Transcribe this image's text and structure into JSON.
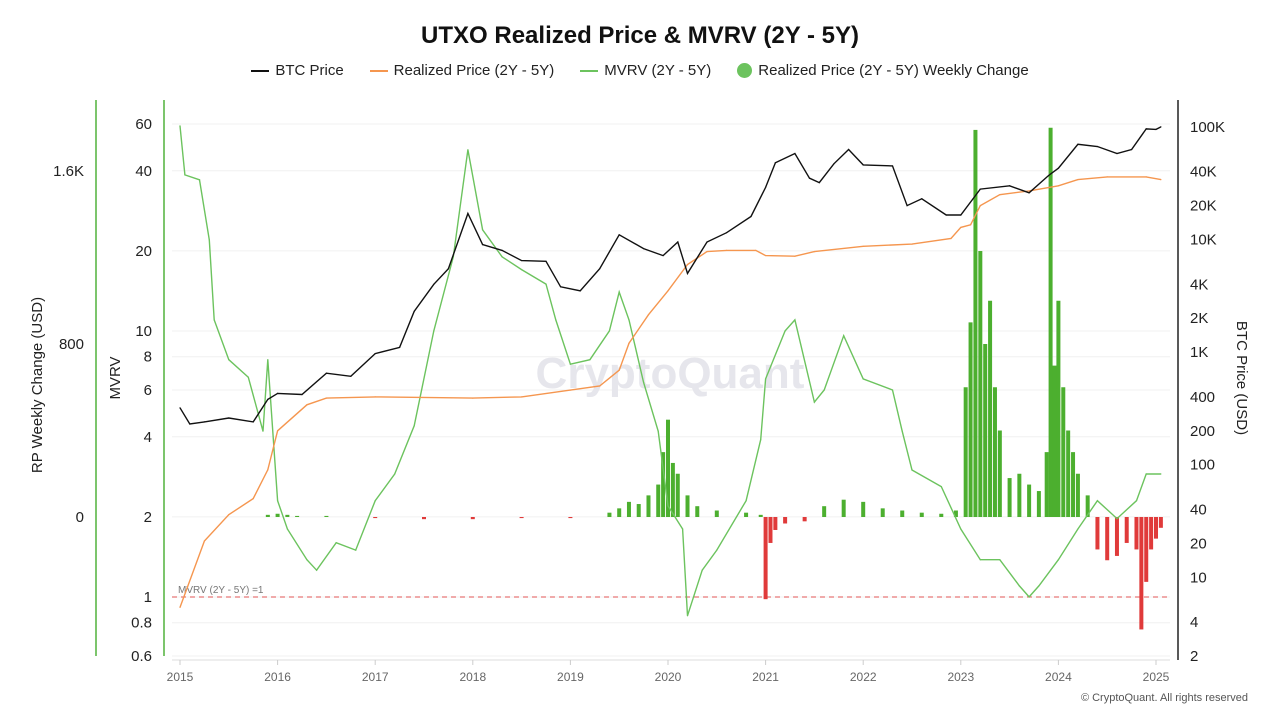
{
  "chart_data": {
    "type": "line",
    "title": "UTXO Realized Price & MVRV (2Y - 5Y)",
    "legend": [
      {
        "label": "BTC Price",
        "color": "#111111"
      },
      {
        "label": "Realized Price (2Y - 5Y)",
        "color": "#f5964f"
      },
      {
        "label": "MVRV (2Y - 5Y)",
        "color": "#6cc35e"
      },
      {
        "label": "Realized Price (2Y - 5Y) Weekly Change",
        "color": "#6cc35e"
      }
    ],
    "legend_placement": "top",
    "axes": {
      "x": {
        "ticks": [
          "2015",
          "2016",
          "2017",
          "2018",
          "2019",
          "2020",
          "2021",
          "2022",
          "2023",
          "2024",
          "2025"
        ],
        "range": [
          2015,
          2025.1
        ]
      },
      "rp_change": {
        "label": "RP Weekly Change (USD)",
        "ticks": [
          "0",
          "800",
          "1.6K"
        ],
        "tick_values": [
          0,
          800,
          1600
        ],
        "scale": "linear",
        "position": "left-outer"
      },
      "mvrv": {
        "label": "MVRV",
        "ticks": [
          "0.6",
          "0.8",
          "1",
          "2",
          "4",
          "6",
          "8",
          "10",
          "20",
          "40",
          "60"
        ],
        "tick_values": [
          0.6,
          0.8,
          1,
          2,
          4,
          6,
          8,
          10,
          20,
          40,
          60
        ],
        "scale": "log",
        "range": [
          0.6,
          60
        ],
        "position": "left-inner"
      },
      "btc": {
        "label": "BTC Price (USD)",
        "ticks": [
          "2",
          "4",
          "10",
          "20",
          "40",
          "100",
          "200",
          "400",
          "1K",
          "2K",
          "4K",
          "10K",
          "20K",
          "40K",
          "100K"
        ],
        "tick_values": [
          2,
          4,
          10,
          20,
          40,
          100,
          200,
          400,
          1000,
          2000,
          4000,
          10000,
          20000,
          40000,
          100000
        ],
        "scale": "log",
        "range": [
          2,
          100000
        ],
        "position": "right"
      }
    },
    "reference_line": {
      "label": "MVRV (2Y - 5Y) =1",
      "value": 1,
      "color": "#e05555"
    },
    "grid": true,
    "watermark": "CryptoQuant",
    "series": [
      {
        "name": "BTC Price",
        "axis": "btc",
        "color": "#111111",
        "x": [
          2015.0,
          2015.1,
          2015.25,
          2015.5,
          2015.75,
          2015.9,
          2016.0,
          2016.25,
          2016.5,
          2016.75,
          2017.0,
          2017.25,
          2017.4,
          2017.6,
          2017.75,
          2017.95,
          2018.1,
          2018.3,
          2018.5,
          2018.75,
          2018.9,
          2019.1,
          2019.3,
          2019.5,
          2019.75,
          2019.95,
          2020.1,
          2020.2,
          2020.4,
          2020.6,
          2020.85,
          2021.0,
          2021.1,
          2021.3,
          2021.45,
          2021.55,
          2021.7,
          2021.85,
          2022.0,
          2022.3,
          2022.45,
          2022.6,
          2022.85,
          2023.0,
          2023.2,
          2023.5,
          2023.7,
          2023.9,
          2024.0,
          2024.2,
          2024.4,
          2024.6,
          2024.75,
          2024.9,
          2025.0,
          2025.05
        ],
        "y": [
          320,
          230,
          240,
          260,
          240,
          380,
          430,
          420,
          650,
          610,
          970,
          1100,
          2300,
          4000,
          5500,
          17000,
          9000,
          8000,
          6500,
          6400,
          3800,
          3500,
          5500,
          11000,
          8300,
          7200,
          9500,
          5000,
          9500,
          11500,
          16000,
          29000,
          48000,
          58000,
          35000,
          32000,
          47000,
          63000,
          46000,
          45000,
          20000,
          23000,
          16500,
          16500,
          28000,
          30000,
          26000,
          37000,
          43000,
          70000,
          67000,
          58000,
          63000,
          96000,
          95000,
          100000
        ]
      },
      {
        "name": "Realized Price (2Y - 5Y)",
        "axis": "btc",
        "color": "#f5964f",
        "x": [
          2015.0,
          2015.25,
          2015.5,
          2015.75,
          2015.9,
          2016.0,
          2016.3,
          2016.5,
          2017.0,
          2018.0,
          2018.5,
          2019.0,
          2019.3,
          2019.5,
          2019.6,
          2019.8,
          2020.0,
          2020.2,
          2020.4,
          2020.6,
          2020.9,
          2021.0,
          2021.3,
          2021.5,
          2022.0,
          2022.5,
          2022.9,
          2023.0,
          2023.1,
          2023.2,
          2023.4,
          2023.7,
          2024.0,
          2024.2,
          2024.5,
          2024.9,
          2025.05
        ],
        "y": [
          5.4,
          21,
          36,
          50,
          90,
          200,
          340,
          390,
          400,
          390,
          400,
          460,
          500,
          690,
          1200,
          2150,
          3500,
          6000,
          7800,
          8000,
          8000,
          7200,
          7100,
          7800,
          8700,
          9100,
          10200,
          12800,
          13500,
          20000,
          25000,
          27000,
          30000,
          34000,
          36000,
          36000,
          34000
        ]
      },
      {
        "name": "MVRV (2Y - 5Y)",
        "axis": "mvrv",
        "color": "#6cc35e",
        "x": [
          2015.0,
          2015.05,
          2015.2,
          2015.3,
          2015.35,
          2015.5,
          2015.7,
          2015.85,
          2015.9,
          2016.0,
          2016.1,
          2016.3,
          2016.4,
          2016.6,
          2016.8,
          2017.0,
          2017.2,
          2017.4,
          2017.6,
          2017.8,
          2017.95,
          2018.1,
          2018.3,
          2018.5,
          2018.75,
          2018.85,
          2019.0,
          2019.2,
          2019.4,
          2019.5,
          2019.6,
          2019.75,
          2019.9,
          2020.0,
          2020.15,
          2020.2,
          2020.35,
          2020.5,
          2020.8,
          2020.95,
          2021.0,
          2021.2,
          2021.3,
          2021.5,
          2021.6,
          2021.8,
          2022.0,
          2022.3,
          2022.4,
          2022.5,
          2022.8,
          2023.0,
          2023.2,
          2023.4,
          2023.6,
          2023.7,
          2023.8,
          2024.0,
          2024.2,
          2024.4,
          2024.6,
          2024.8,
          2024.9,
          2025.05
        ],
        "y": [
          59,
          38.6,
          37,
          22,
          11,
          7.8,
          6.7,
          4.2,
          7.8,
          2.3,
          1.8,
          1.38,
          1.26,
          1.6,
          1.5,
          2.3,
          2.9,
          4.4,
          10,
          19,
          48,
          24,
          19,
          17,
          15,
          11,
          7.5,
          7.8,
          10,
          14,
          11,
          6.4,
          4.2,
          2.2,
          1.8,
          0.85,
          1.26,
          1.5,
          2.3,
          3.9,
          6.6,
          10,
          11,
          5.4,
          6,
          9.6,
          6.6,
          6,
          4.2,
          3,
          2.6,
          1.8,
          1.38,
          1.38,
          1.1,
          1.0,
          1.1,
          1.38,
          1.8,
          2.3,
          1.97,
          2.3,
          2.9,
          2.9
        ]
      },
      {
        "name": "Realized Price (2Y - 5Y) Weekly Change",
        "axis": "rp_change",
        "type": "bar",
        "positive_color": "#4caf2f",
        "negative_color": "#e03a3a",
        "x": [
          2015.9,
          2016.0,
          2016.1,
          2016.2,
          2016.5,
          2017.0,
          2017.5,
          2018.0,
          2018.5,
          2019.0,
          2019.4,
          2019.5,
          2019.6,
          2019.7,
          2019.8,
          2019.9,
          2019.95,
          2020.0,
          2020.05,
          2020.1,
          2020.2,
          2020.3,
          2020.5,
          2020.8,
          2020.95,
          2021.0,
          2021.05,
          2021.1,
          2021.2,
          2021.4,
          2021.6,
          2021.8,
          2022.0,
          2022.2,
          2022.4,
          2022.6,
          2022.8,
          2022.95,
          2023.05,
          2023.1,
          2023.15,
          2023.2,
          2023.25,
          2023.3,
          2023.35,
          2023.4,
          2023.5,
          2023.6,
          2023.7,
          2023.8,
          2023.88,
          2023.92,
          2023.96,
          2024.0,
          2024.05,
          2024.1,
          2024.15,
          2024.2,
          2024.3,
          2024.4,
          2024.5,
          2024.6,
          2024.7,
          2024.8,
          2024.85,
          2024.9,
          2024.95,
          2025.0,
          2025.05
        ],
        "y": [
          10,
          15,
          10,
          5,
          5,
          -5,
          -10,
          -10,
          -5,
          -5,
          20,
          40,
          70,
          60,
          100,
          150,
          300,
          450,
          250,
          200,
          100,
          50,
          30,
          20,
          10,
          -380,
          -120,
          -60,
          -30,
          -20,
          50,
          80,
          70,
          40,
          30,
          20,
          15,
          30,
          600,
          900,
          1790,
          1230,
          800,
          1000,
          600,
          400,
          180,
          200,
          150,
          120,
          300,
          1800,
          700,
          1000,
          600,
          400,
          300,
          200,
          100,
          -150,
          -200,
          -180,
          -120,
          -150,
          -520,
          -300,
          -150,
          -100,
          -50
        ]
      }
    ]
  },
  "footer": {
    "copyright": "© CryptoQuant. All rights reserved"
  }
}
